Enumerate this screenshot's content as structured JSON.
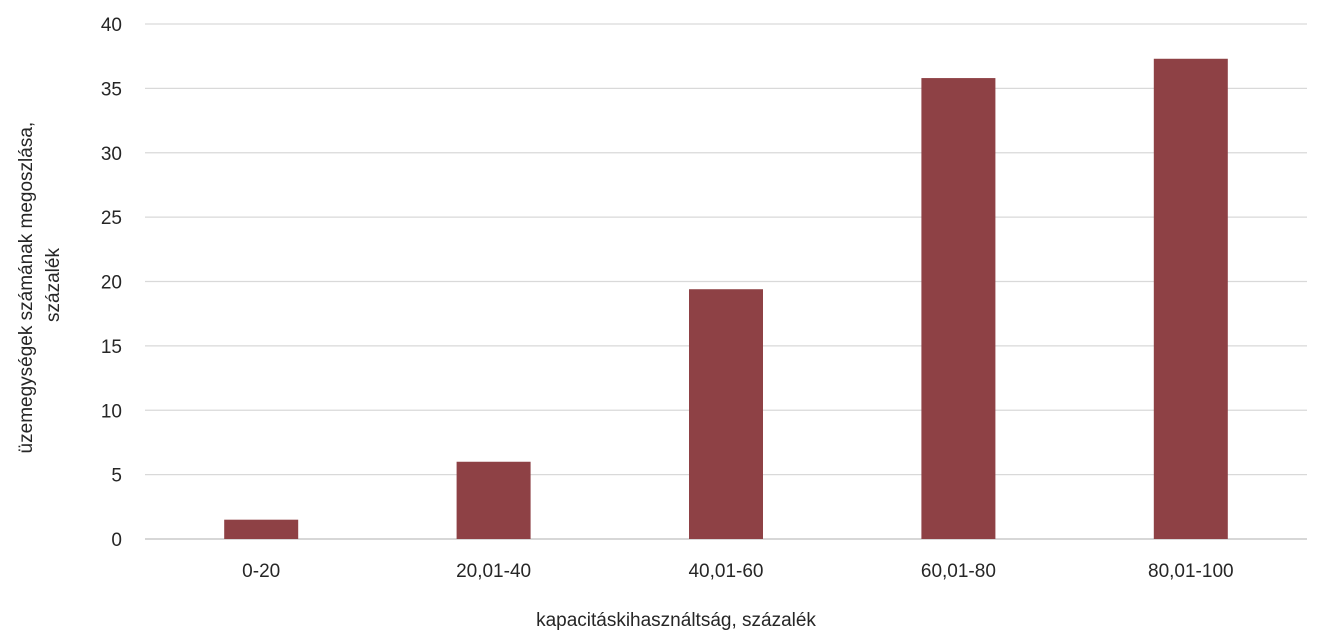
{
  "chart_data": {
    "type": "bar",
    "categories": [
      "0-20",
      "20,01-40",
      "40,01-60",
      "60,01-80",
      "80,01-100"
    ],
    "values": [
      1.5,
      6.0,
      19.4,
      35.8,
      37.3
    ],
    "title": "",
    "xlabel": "kapacitáskihasználtság, százalék",
    "ylabel_lines": [
      "üzemegységek számának megoszlása,",
      "százalék"
    ],
    "ylim": [
      0,
      40
    ],
    "yticks": [
      "0",
      "5",
      "10",
      "15",
      "20",
      "25",
      "30",
      "35",
      "40"
    ],
    "grid": true,
    "legend": "none",
    "bar_color": "#8e4145"
  }
}
